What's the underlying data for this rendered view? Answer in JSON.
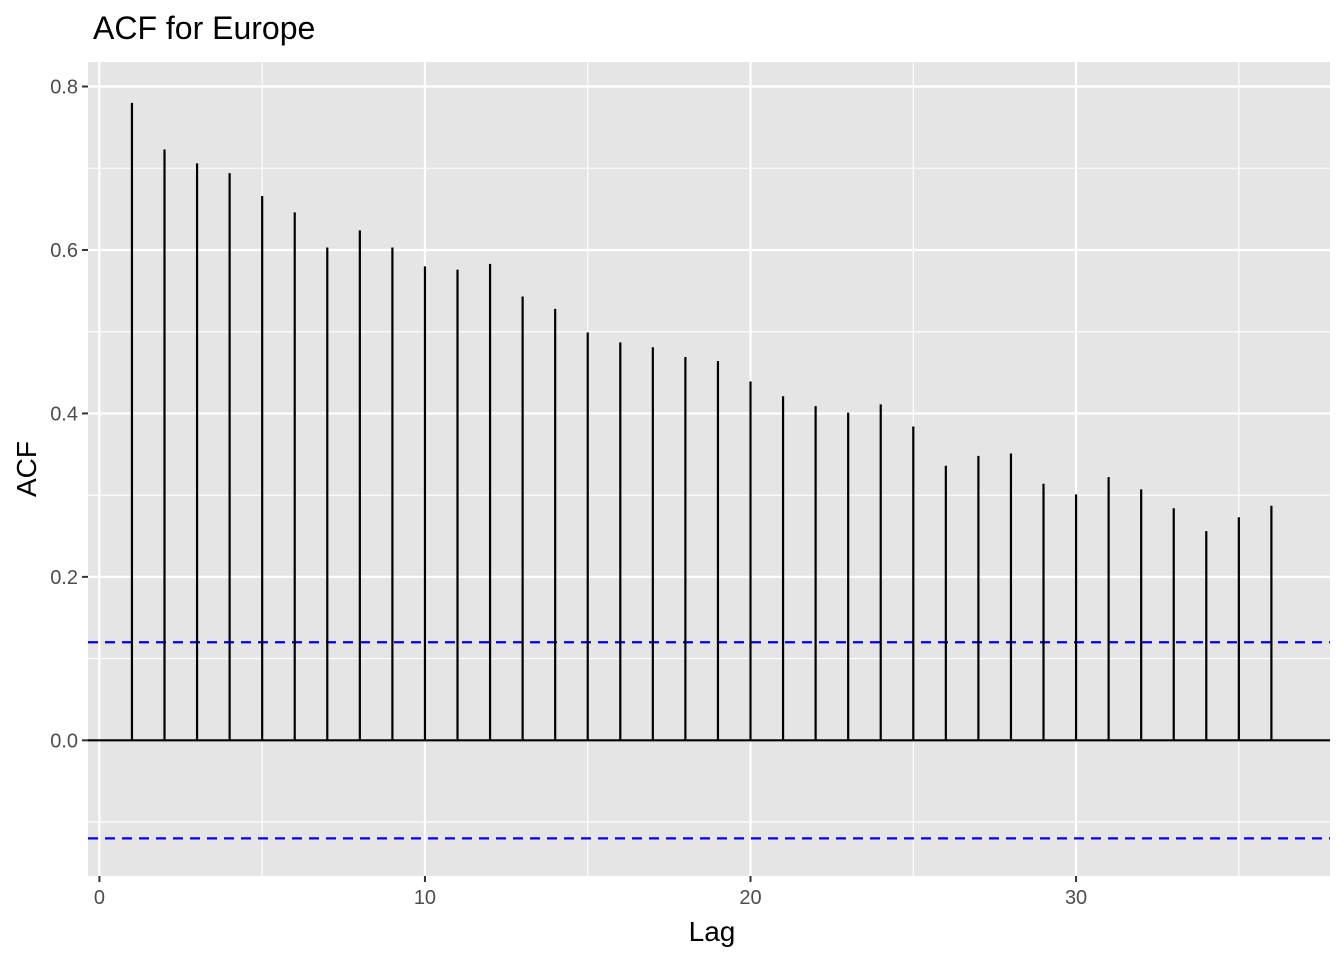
{
  "chart_data": {
    "type": "bar",
    "title": "ACF for Europe",
    "xlabel": "Lag",
    "ylabel": "ACF",
    "x": [
      1,
      2,
      3,
      4,
      5,
      6,
      7,
      8,
      9,
      10,
      11,
      12,
      13,
      14,
      15,
      16,
      17,
      18,
      19,
      20,
      21,
      22,
      23,
      24,
      25,
      26,
      27,
      28,
      29,
      30,
      31,
      32,
      33,
      34,
      35,
      36
    ],
    "values": [
      0.78,
      0.723,
      0.706,
      0.694,
      0.666,
      0.646,
      0.603,
      0.624,
      0.603,
      0.58,
      0.576,
      0.583,
      0.543,
      0.528,
      0.499,
      0.487,
      0.481,
      0.469,
      0.464,
      0.439,
      0.421,
      0.409,
      0.401,
      0.411,
      0.384,
      0.336,
      0.348,
      0.351,
      0.314,
      0.301,
      0.322,
      0.307,
      0.284,
      0.256,
      0.273,
      0.287
    ],
    "confidence_bound": 0.12,
    "xlim": [
      -0.35,
      37.8
    ],
    "ylim": [
      -0.166,
      0.83
    ],
    "x_ticks": [
      0,
      10,
      20,
      30
    ],
    "x_tick_labels": [
      "0",
      "10",
      "20",
      "30"
    ],
    "y_ticks": [
      0.0,
      0.2,
      0.4,
      0.6,
      0.8
    ],
    "y_tick_labels": [
      "0.0",
      "0.2",
      "0.4",
      "0.6",
      "0.8"
    ],
    "grid": true,
    "colors": {
      "panel_background": "#e5e5e5",
      "grid": "#ffffff",
      "bar": "#000000",
      "confidence_line": "#0000ff"
    }
  }
}
